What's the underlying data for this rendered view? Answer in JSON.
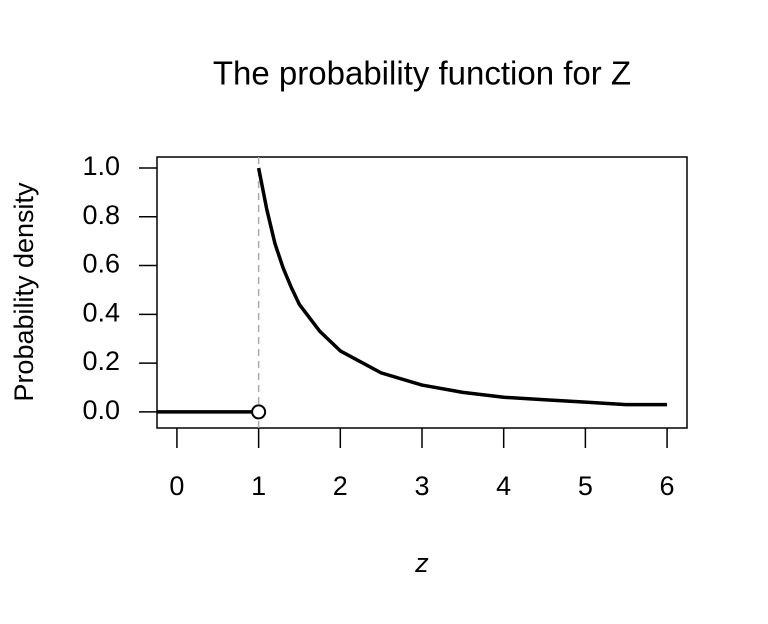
{
  "chart_data": {
    "type": "line",
    "title": "The probability function for Z",
    "x_label": "z",
    "y_label": "Probability density",
    "xlim": [
      -0.244,
      6.244
    ],
    "ylim": [
      -0.066,
      1.045
    ],
    "xticks": [
      0,
      1,
      2,
      3,
      4,
      5,
      6
    ],
    "yticks": [
      {
        "value": 0,
        "label": "0.0"
      },
      {
        "value": 0.2,
        "label": "0.2"
      },
      {
        "value": 0.4,
        "label": "0.4"
      },
      {
        "value": 0.6,
        "label": "0.6"
      },
      {
        "value": 0.8,
        "label": "0.8"
      },
      {
        "value": 1,
        "label": "1.0"
      }
    ],
    "vline": 1,
    "series": [
      {
        "color": "#000000",
        "x": [
          -0.244,
          1
        ],
        "values": [
          0,
          0
        ]
      },
      {
        "color": "#000000",
        "x": [
          1,
          1.1,
          1.2,
          1.3,
          1.4,
          1.5,
          1.75,
          2,
          2.5,
          3,
          3.5,
          4,
          4.5,
          5,
          5.5,
          6
        ],
        "values": [
          1,
          0.83,
          0.69,
          0.59,
          0.51,
          0.44,
          0.33,
          0.25,
          0.16,
          0.11,
          0.08,
          0.06,
          0.05,
          0.04,
          0.03,
          0.03
        ]
      },
      {
        "color": "#000000",
        "marker": "open-circle",
        "x": [
          1
        ],
        "values": [
          0
        ]
      }
    ]
  }
}
